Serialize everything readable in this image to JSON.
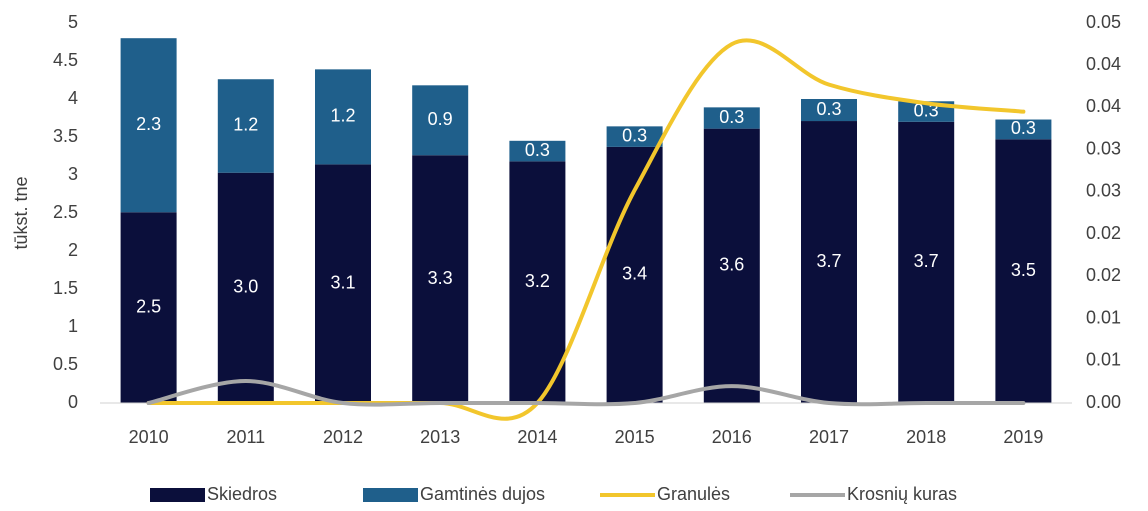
{
  "chart_data": {
    "type": "bar_line",
    "categories": [
      "2010",
      "2011",
      "2012",
      "2013",
      "2014",
      "2015",
      "2016",
      "2017",
      "2018",
      "2019"
    ],
    "ylabel": "tūkst. tne",
    "ylim": [
      0,
      5
    ],
    "yticks": [
      0,
      0.5,
      1,
      1.5,
      2,
      2.5,
      3,
      3.5,
      4,
      4.5,
      5
    ],
    "y2lim": [
      0,
      0.045
    ],
    "y2ticks": [
      {
        "value": 0,
        "label": "0.00"
      },
      {
        "value": 0.005,
        "label": "0.01"
      },
      {
        "value": 0.01,
        "label": "0.01"
      },
      {
        "value": 0.015,
        "label": "0.02"
      },
      {
        "value": 0.02,
        "label": "0.02"
      },
      {
        "value": 0.025,
        "label": "0.03"
      },
      {
        "value": 0.03,
        "label": "0.03"
      },
      {
        "value": 0.035,
        "label": "0.04"
      },
      {
        "value": 0.04,
        "label": "0.04"
      },
      {
        "value": 0.045,
        "label": "0.05"
      }
    ],
    "series": [
      {
        "name": "Skiedros",
        "type": "bar",
        "color": "#0b0f3b",
        "values": [
          2.51,
          3.03,
          3.14,
          3.26,
          3.18,
          3.37,
          3.61,
          3.71,
          3.7,
          3.47
        ],
        "value_labels": [
          "2.5",
          "3.0",
          "3.1",
          "3.3",
          "3.2",
          "3.4",
          "3.6",
          "3.7",
          "3.7",
          "3.5"
        ]
      },
      {
        "name": "Gamtinės dujos",
        "type": "bar",
        "color": "#1f5f8b",
        "values": [
          2.29,
          1.23,
          1.25,
          0.92,
          0.27,
          0.27,
          0.28,
          0.29,
          0.27,
          0.26
        ],
        "value_labels": [
          "2.3",
          "1.2",
          "1.2",
          "0.9",
          "0.3",
          "0.3",
          "0.3",
          "0.3",
          "0.3",
          "0.3"
        ]
      },
      {
        "name": "Granulės",
        "type": "line",
        "axis": "y2",
        "color": "#f2c62c",
        "values": [
          0,
          0,
          0,
          0,
          0,
          0.0252,
          0.0425,
          0.0377,
          0.0355,
          0.0345
        ]
      },
      {
        "name": "Krosnių kuras",
        "type": "line",
        "axis": "y2",
        "color": "#a6a6a6",
        "values": [
          0,
          0.0026,
          0,
          0,
          0,
          0,
          0.002,
          0,
          0,
          0
        ]
      }
    ]
  }
}
